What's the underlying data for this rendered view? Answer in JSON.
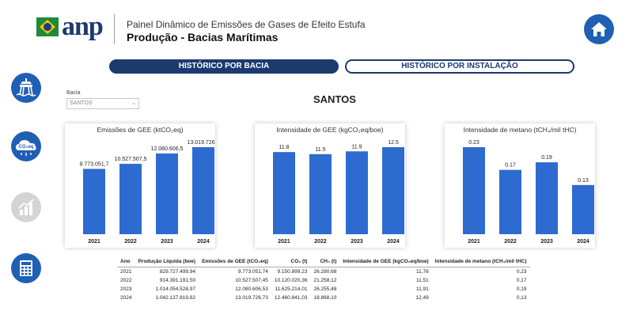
{
  "header": {
    "logo_text": "anp",
    "title": "Painel Dinâmico de Emissões de Gases de Efeito Estufa",
    "subtitle": "Produção - Bacias Marítimas"
  },
  "tabs": [
    {
      "label": "HISTÓRICO POR BACIA",
      "active": true
    },
    {
      "label": "HISTÓRICO POR INSTALAÇÃO",
      "active": false
    }
  ],
  "sidebar": {
    "icons": [
      {
        "name": "offshore-platform-icon",
        "color": "#1f5fb4"
      },
      {
        "name": "co2eq-cloud-icon",
        "label": "CO₂eq",
        "color": "#1f5fb4"
      },
      {
        "name": "bar-chart-icon",
        "color": "#d4d4d4"
      },
      {
        "name": "calculator-table-icon",
        "color": "#1f5fb4"
      }
    ]
  },
  "filter": {
    "label": "Bacia",
    "selected": "SANTOS"
  },
  "basin_title": "SANTOS",
  "colors": {
    "bar": "#2e6bd1",
    "primary": "#1c3a6e",
    "accent": "#1f5fb4"
  },
  "chart_data": [
    {
      "type": "bar",
      "title": "Emissões de GEE (ktCO₂eq)",
      "categories": [
        "2021",
        "2022",
        "2023",
        "2024"
      ],
      "values": [
        9773051.7,
        10527507.5,
        12080606.5,
        13019726.7
      ],
      "labels": [
        "9.773.051,7",
        "10.527.507,5",
        "12.080.606,5",
        "13.019.726,7"
      ],
      "ylim": [
        0,
        13019726.7
      ]
    },
    {
      "type": "bar",
      "title": "Intensidade de GEE (kgCO₂eq/boe)",
      "categories": [
        "2021",
        "2022",
        "2023",
        "2024"
      ],
      "values": [
        11.8,
        11.5,
        11.9,
        12.5
      ],
      "labels": [
        "11.8",
        "11.5",
        "11.9",
        "12.5"
      ],
      "ylim": [
        0,
        12.5
      ]
    },
    {
      "type": "bar",
      "title": "Intensidade de metano (tCH₄/mil tHC)",
      "categories": [
        "2021",
        "2022",
        "2023",
        "2024"
      ],
      "values": [
        0.23,
        0.17,
        0.19,
        0.13
      ],
      "labels": [
        "0.23",
        "0.17",
        "0.19",
        "0.13"
      ],
      "ylim": [
        0,
        0.23
      ]
    }
  ],
  "table": {
    "headers": [
      "Ano",
      "Produção Líquida (boe)",
      "Emissões de GEE (tCO₂eq)",
      "CO₂ (t)",
      "CH₄ (t)",
      "Intensidade de GEE (kgCO₂eq/boe)",
      "Intensidade de metano (tCH₄/mil tHC)"
    ],
    "rows": [
      [
        "2021",
        "829.727.499,94",
        "9.773.051,74",
        "9.150.899,23",
        "26.280,68",
        "11,78",
        "0,23"
      ],
      [
        "2022",
        "914.391.191,50",
        "10.527.507,45",
        "10.120.020,36",
        "21.258,12",
        "11,51",
        "0,17"
      ],
      [
        "2023",
        "1.014.054.528,97",
        "12.080.606,53",
        "11.625.214,01",
        "26.255,48",
        "11,91",
        "0,19"
      ],
      [
        "2024",
        "1.042.137.819,62",
        "13.019.726,73",
        "12.460.841,03",
        "18.868,10",
        "12,49",
        "0,13"
      ]
    ]
  }
}
